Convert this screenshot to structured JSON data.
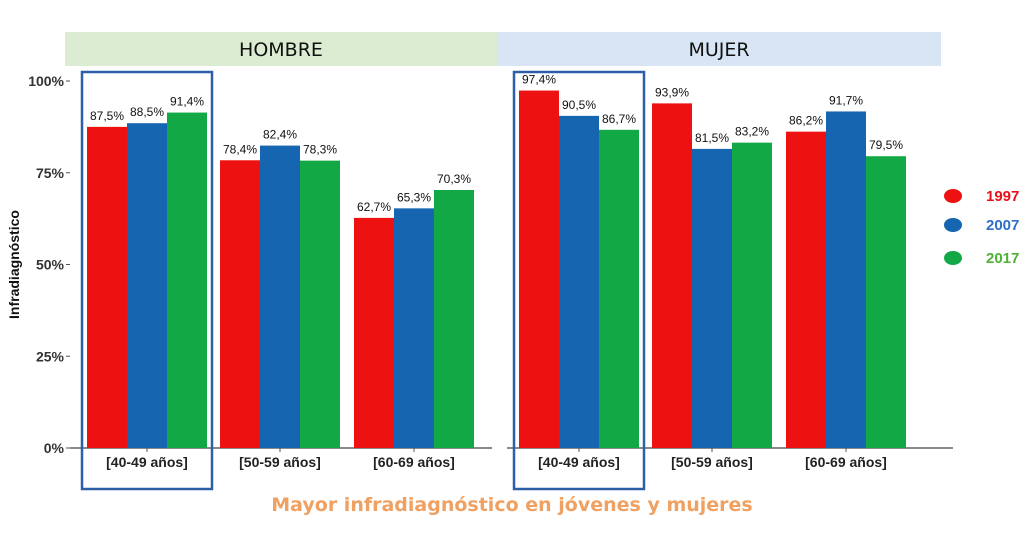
{
  "chart_data": {
    "type": "bar",
    "ylabel": "Infradiagnóstico",
    "ylim": [
      0,
      100
    ],
    "yticks": [
      "0%",
      "25%",
      "50%",
      "75%",
      "100%"
    ],
    "yticks_values": [
      0,
      25,
      50,
      75,
      100
    ],
    "categories": [
      "[40-49 años]",
      "[50-59 años]",
      "[60-69 años]"
    ],
    "legend_position": "right",
    "caption": "Mayor infradiagnóstico en jóvenes y mujeres",
    "series_meta": [
      {
        "name": "1997",
        "color": "#ee1111",
        "text_color": "#e8101a"
      },
      {
        "name": "2007",
        "color": "#1565b0",
        "text_color": "#2f6fc7"
      },
      {
        "name": "2017",
        "color": "#12a845",
        "text_color": "#4db135"
      }
    ],
    "panels": [
      {
        "label": "HOMBRE",
        "header_color": "#dcecd3",
        "series": [
          {
            "name": "1997",
            "values": [
              87.5,
              78.4,
              62.7
            ],
            "labels": [
              "87,5%",
              "78,4%",
              "62,7%"
            ]
          },
          {
            "name": "2007",
            "values": [
              88.5,
              82.4,
              65.3
            ],
            "labels": [
              "88,5%",
              "82,4%",
              "65,3%"
            ]
          },
          {
            "name": "2017",
            "values": [
              91.4,
              78.3,
              70.3
            ],
            "labels": [
              "91,4%",
              "78,3%",
              "70,3%"
            ]
          }
        ],
        "highlighted_category": "[40-49 años]"
      },
      {
        "label": "MUJER",
        "header_color": "#d7e5f4",
        "series": [
          {
            "name": "1997",
            "values": [
              97.4,
              93.9,
              86.2
            ],
            "labels": [
              "97,4%",
              "93,9%",
              "86,2%"
            ]
          },
          {
            "name": "2007",
            "values": [
              90.5,
              81.5,
              91.7
            ],
            "labels": [
              "90,5%",
              "81,5%",
              "91,7%"
            ]
          },
          {
            "name": "2017",
            "values": [
              86.7,
              83.2,
              79.5
            ],
            "labels": [
              "86,7%",
              "83,2%",
              "79,5%"
            ]
          }
        ],
        "highlighted_category": "[40-49 años]"
      }
    ],
    "highlight_color": "#2e5ea8"
  }
}
